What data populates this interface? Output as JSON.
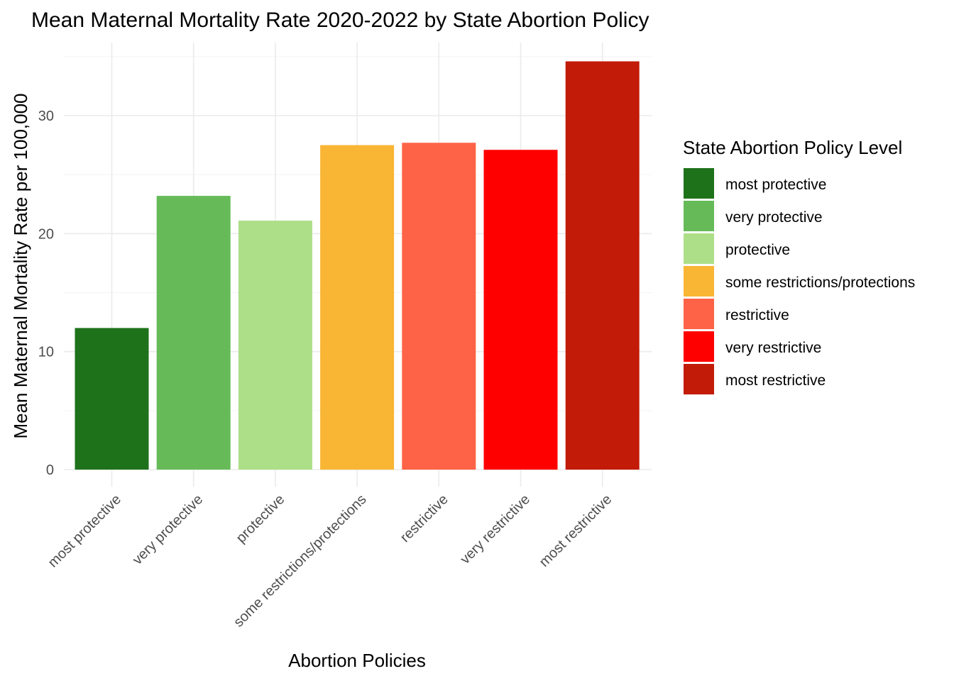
{
  "chart_data": {
    "type": "bar",
    "title": "Mean Maternal Mortality Rate 2020-2022 by State Abortion Policy",
    "xlabel": "Abortion Policies",
    "ylabel": "Mean Maternal Mortality Rate per 100,000",
    "categories": [
      "most protective",
      "very protective",
      "protective",
      "some restrictions/protections",
      "restrictive",
      "very restrictive",
      "most restrictive"
    ],
    "values": [
      12.0,
      23.2,
      21.1,
      27.5,
      27.7,
      27.1,
      34.6
    ],
    "colors": [
      "#1e721a",
      "#66bb58",
      "#addf88",
      "#f9b534",
      "#ff6347",
      "#ff0000",
      "#c21b07"
    ],
    "ylim": [
      0,
      36
    ],
    "yticks": [
      0,
      10,
      20,
      30
    ],
    "grid": true,
    "legend": {
      "title": "State Abortion Policy Level",
      "position": "right",
      "entries": [
        "most protective",
        "very protective",
        "protective",
        "some restrictions/protections",
        "restrictive",
        "very restrictive",
        "most restrictive"
      ]
    }
  }
}
